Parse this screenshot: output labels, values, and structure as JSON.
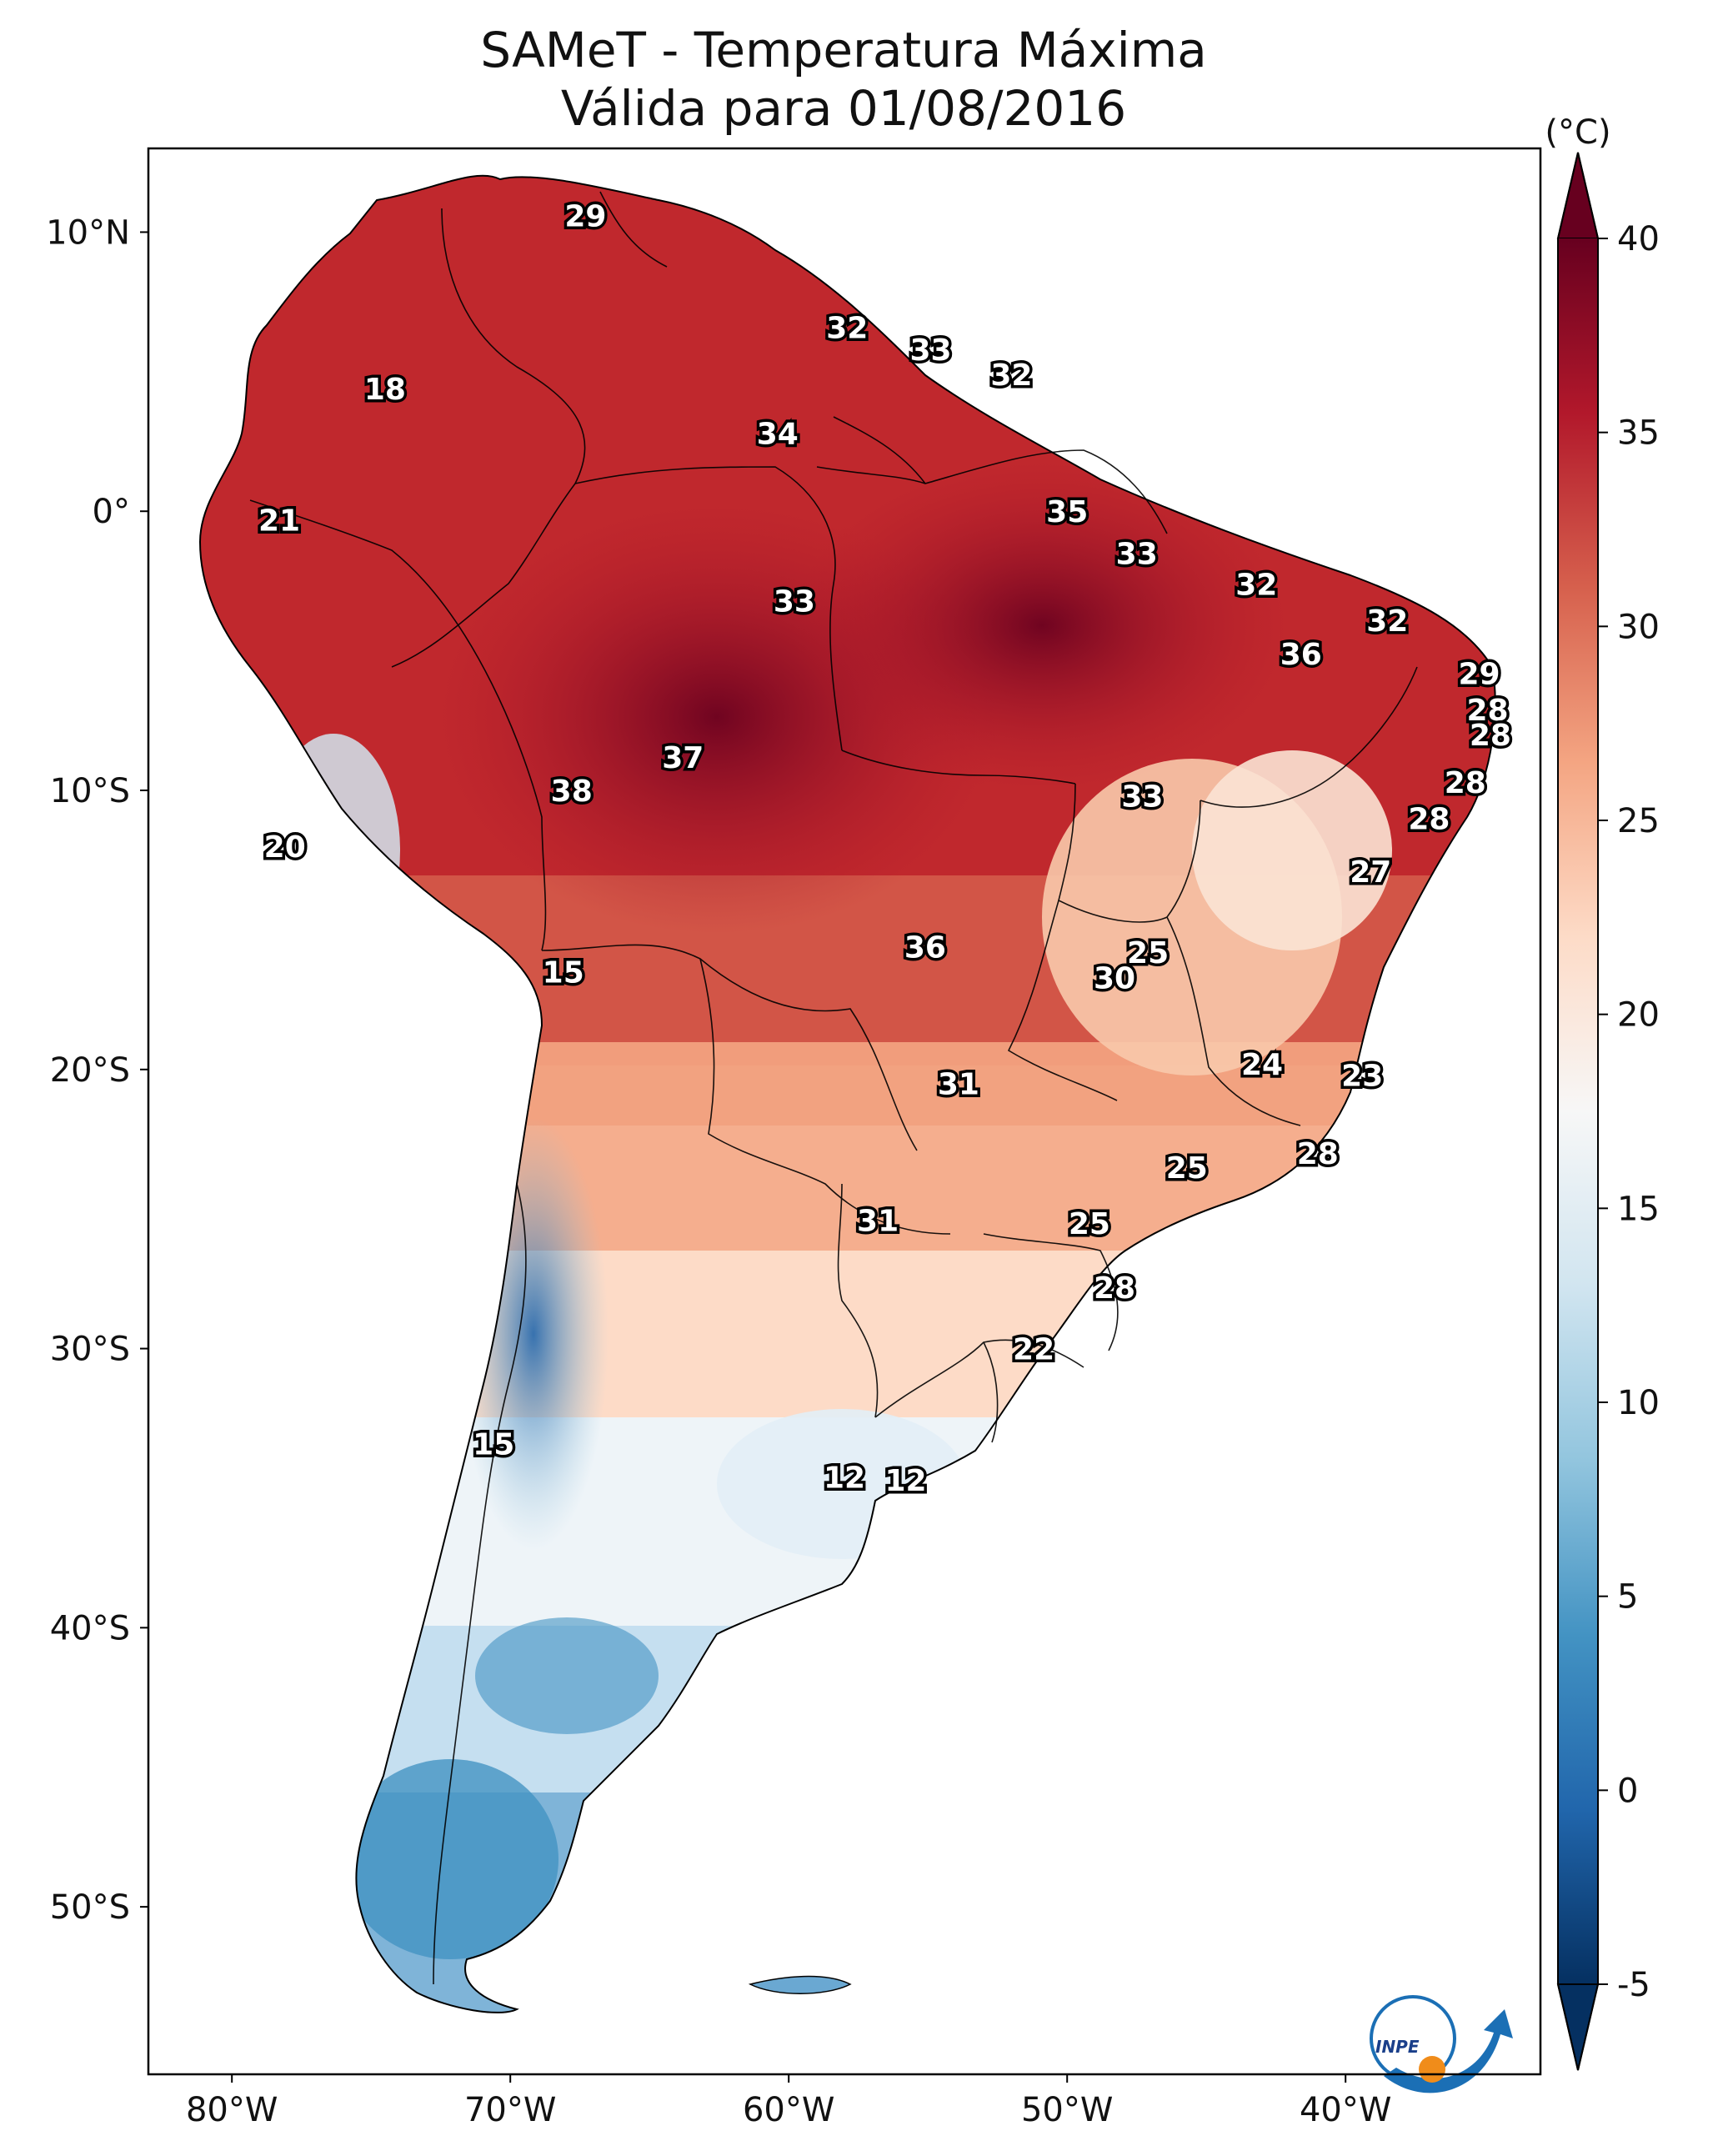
{
  "title": {
    "line1": "SAMeT - Temperatura Máxima",
    "line2": "Válida para 01/08/2016"
  },
  "axes": {
    "lat_ticks": [
      "10°N",
      "0°",
      "10°S",
      "20°S",
      "30°S",
      "40°S",
      "50°S"
    ],
    "lon_ticks": [
      "80°W",
      "70°W",
      "60°W",
      "50°W",
      "40°W"
    ]
  },
  "colorbar": {
    "unit_label": "(°C)",
    "ticks": [
      "40",
      "35",
      "30",
      "25",
      "20",
      "15",
      "10",
      "5",
      "0",
      "-5"
    ],
    "range": [
      -5,
      40
    ],
    "colors": [
      "#053061",
      "#2166ac",
      "#4393c3",
      "#92c5de",
      "#d1e5f0",
      "#f7f7f7",
      "#fddbc7",
      "#f4a582",
      "#d6604d",
      "#b2182b",
      "#67001f"
    ]
  },
  "station_labels": [
    {
      "text": "29",
      "lon": -67.3,
      "lat": 10.6
    },
    {
      "text": "18",
      "lon": -74.5,
      "lat": 4.4
    },
    {
      "text": "32",
      "lon": -57.9,
      "lat": 6.6
    },
    {
      "text": "33",
      "lon": -54.9,
      "lat": 5.8
    },
    {
      "text": "32",
      "lon": -52.0,
      "lat": 4.9
    },
    {
      "text": "34",
      "lon": -60.4,
      "lat": 2.8
    },
    {
      "text": "35",
      "lon": -50.0,
      "lat": 0.0
    },
    {
      "text": "21",
      "lon": -78.3,
      "lat": -0.3
    },
    {
      "text": "33",
      "lon": -47.5,
      "lat": -1.5
    },
    {
      "text": "32",
      "lon": -43.2,
      "lat": -2.6
    },
    {
      "text": "33",
      "lon": -59.8,
      "lat": -3.2
    },
    {
      "text": "32",
      "lon": -38.5,
      "lat": -3.9
    },
    {
      "text": "36",
      "lon": -41.6,
      "lat": -5.1
    },
    {
      "text": "29",
      "lon": -35.2,
      "lat": -5.8
    },
    {
      "text": "28",
      "lon": -34.9,
      "lat": -7.1
    },
    {
      "text": "28",
      "lon": -34.8,
      "lat": -8.0
    },
    {
      "text": "37",
      "lon": -63.8,
      "lat": -8.8
    },
    {
      "text": "38",
      "lon": -67.8,
      "lat": -10.0
    },
    {
      "text": "33",
      "lon": -47.3,
      "lat": -10.2
    },
    {
      "text": "28",
      "lon": -35.7,
      "lat": -9.7
    },
    {
      "text": "28",
      "lon": -37.0,
      "lat": -11.0
    },
    {
      "text": "20",
      "lon": -78.1,
      "lat": -12.0
    },
    {
      "text": "27",
      "lon": -39.1,
      "lat": -12.9
    },
    {
      "text": "36",
      "lon": -55.1,
      "lat": -15.6
    },
    {
      "text": "25",
      "lon": -47.1,
      "lat": -15.8
    },
    {
      "text": "30",
      "lon": -48.3,
      "lat": -16.7
    },
    {
      "text": "15",
      "lon": -68.1,
      "lat": -16.5
    },
    {
      "text": "24",
      "lon": -43.0,
      "lat": -19.8
    },
    {
      "text": "23",
      "lon": -39.4,
      "lat": -20.2
    },
    {
      "text": "31",
      "lon": -53.9,
      "lat": -20.5
    },
    {
      "text": "28",
      "lon": -41.0,
      "lat": -23.0
    },
    {
      "text": "25",
      "lon": -45.7,
      "lat": -23.5
    },
    {
      "text": "31",
      "lon": -56.8,
      "lat": -25.4
    },
    {
      "text": "25",
      "lon": -49.2,
      "lat": -25.5
    },
    {
      "text": "28",
      "lon": -48.3,
      "lat": -27.8
    },
    {
      "text": "22",
      "lon": -51.2,
      "lat": -30.0
    },
    {
      "text": "15",
      "lon": -70.6,
      "lat": -33.4
    },
    {
      "text": "12",
      "lon": -58.0,
      "lat": -34.6
    },
    {
      "text": "12",
      "lon": -55.8,
      "lat": -34.7
    }
  ],
  "logo": {
    "text": "INPE"
  }
}
